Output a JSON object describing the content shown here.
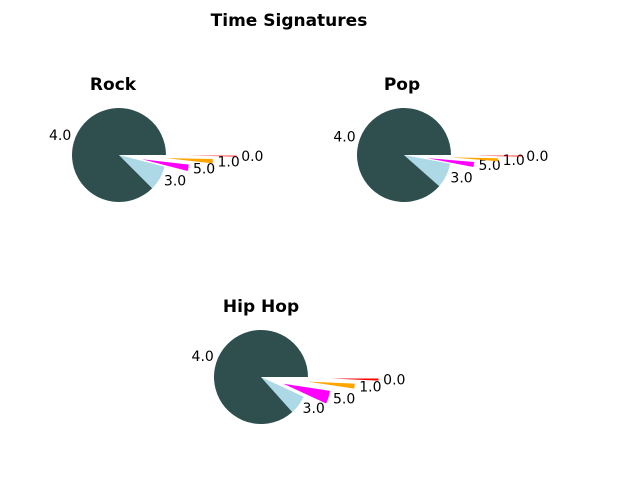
{
  "title": "Time Signatures",
  "chart_data": [
    {
      "type": "pie",
      "title": "Rock",
      "labels": [
        "4.0",
        "3.0",
        "5.0",
        "1.0",
        "0.0"
      ],
      "values": [
        87.5,
        8.5,
        2.2,
        1.5,
        0.3
      ],
      "colors": [
        "#2f4f4f",
        "#add8e6",
        "#ff00ff",
        "#ffa500",
        "#ff0000"
      ],
      "explode": [
        0,
        0,
        0.5,
        1.0,
        1.5
      ]
    },
    {
      "type": "pie",
      "title": "Pop",
      "labels": [
        "4.0",
        "3.0",
        "5.0",
        "1.0",
        "0.0"
      ],
      "values": [
        88.5,
        8.5,
        1.7,
        1.0,
        0.3
      ],
      "colors": [
        "#2f4f4f",
        "#add8e6",
        "#ff00ff",
        "#ffa500",
        "#ff0000"
      ],
      "explode": [
        0,
        0,
        0.5,
        1.0,
        1.5
      ]
    },
    {
      "type": "pie",
      "title": "Hip Hop",
      "labels": [
        "4.0",
        "3.0",
        "5.0",
        "1.0",
        "0.0"
      ],
      "values": [
        86.6,
        6.5,
        4.5,
        1.7,
        0.7
      ],
      "colors": [
        "#2f4f4f",
        "#add8e6",
        "#ff00ff",
        "#ffa500",
        "#ff0000"
      ],
      "explode": [
        0,
        0,
        0.5,
        1.0,
        1.5
      ]
    }
  ]
}
